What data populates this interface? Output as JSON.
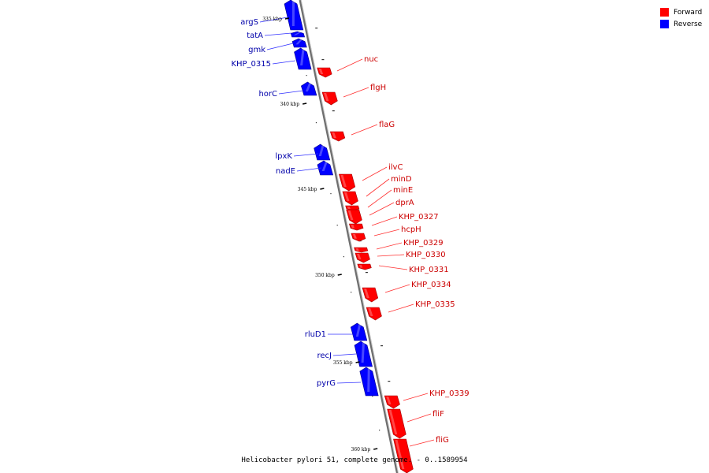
{
  "colors": {
    "forward": "#ff0000",
    "reverse": "#0000ff",
    "axis": "#808080",
    "forward_label": "#cc0000",
    "reverse_label": "#0000aa"
  },
  "legend": {
    "forward": "Forward",
    "reverse": "Reverse"
  },
  "caption": "Helicobacter pylori 51, complete genome. - 0..1589954",
  "tick_labels": [
    "335 kbp",
    "340 kbp",
    "345 kbp",
    "350 kbp",
    "355 kbp",
    "360 kbp"
  ],
  "genes": [
    {
      "name": "argS",
      "strand": "reverse"
    },
    {
      "name": "tatA",
      "strand": "reverse"
    },
    {
      "name": "gmk",
      "strand": "reverse"
    },
    {
      "name": "KHP_0315",
      "strand": "reverse"
    },
    {
      "name": "nuc",
      "strand": "forward"
    },
    {
      "name": "horC",
      "strand": "reverse"
    },
    {
      "name": "flgH",
      "strand": "forward"
    },
    {
      "name": "flaG",
      "strand": "forward"
    },
    {
      "name": "lpxK",
      "strand": "reverse"
    },
    {
      "name": "nadE",
      "strand": "reverse"
    },
    {
      "name": "ilvC",
      "strand": "forward"
    },
    {
      "name": "minD",
      "strand": "forward"
    },
    {
      "name": "minE",
      "strand": "forward"
    },
    {
      "name": "dprA",
      "strand": "forward"
    },
    {
      "name": "KHP_0327",
      "strand": "forward"
    },
    {
      "name": "hcpH",
      "strand": "forward"
    },
    {
      "name": "KHP_0329",
      "strand": "forward"
    },
    {
      "name": "KHP_0330",
      "strand": "forward"
    },
    {
      "name": "KHP_0331",
      "strand": "forward"
    },
    {
      "name": "KHP_0334",
      "strand": "forward"
    },
    {
      "name": "KHP_0335",
      "strand": "forward"
    },
    {
      "name": "rluD1",
      "strand": "reverse"
    },
    {
      "name": "recJ",
      "strand": "reverse"
    },
    {
      "name": "pyrG",
      "strand": "reverse"
    },
    {
      "name": "KHP_0339",
      "strand": "forward"
    },
    {
      "name": "fliF",
      "strand": "forward"
    },
    {
      "name": "fliG",
      "strand": "forward"
    }
  ]
}
